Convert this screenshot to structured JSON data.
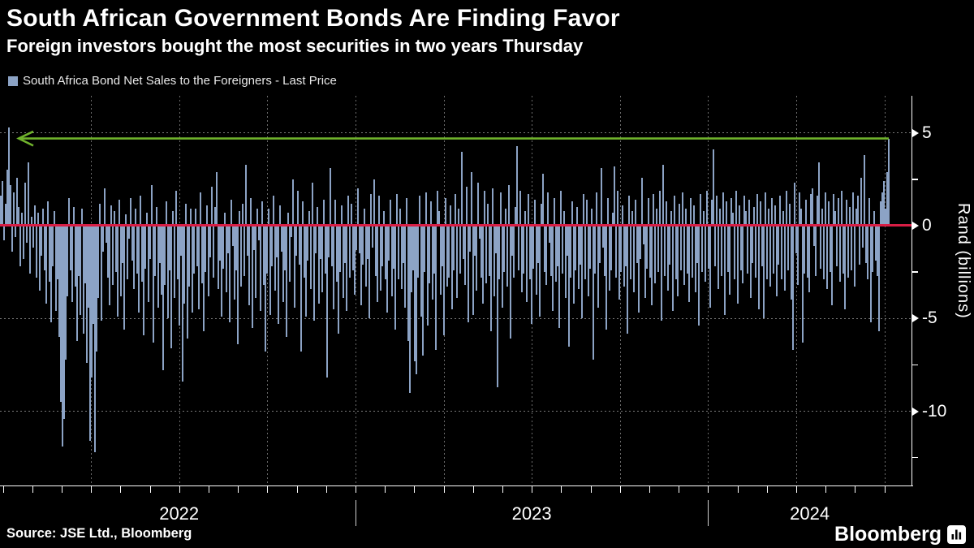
{
  "header": {
    "title": "South African Government Bonds Are Finding Favor",
    "subtitle": "Foreign investors bought the most securities in two years Thursday"
  },
  "legend": {
    "label": "South Africa Bond Net Sales to the Foreigners - Last Price",
    "swatch_color": "#8ca3c5"
  },
  "source": "Source: JSE Ltd., Bloomberg",
  "branding": {
    "logo_text": "Bloomberg"
  },
  "colors": {
    "background": "#000000",
    "bar": "#8ca3c5",
    "zero_line": "#d81e45",
    "annotation_arrow": "#6fb22c",
    "axis": "#ffffff",
    "grid": "rgba(255,255,255,0.45)"
  },
  "chart_data": {
    "type": "bar",
    "title": "South African Government Bonds Are Finding Favor",
    "series_name": "South Africa Bond Net Sales to the Foreigners - Last Price",
    "ylabel": "Rand (billions)",
    "ylim": [
      -14,
      7
    ],
    "y_major_ticks": [
      5,
      0,
      -5,
      -10
    ],
    "y_minor_ticks": [
      2.5,
      -2.5,
      -7.5,
      -12.5
    ],
    "y_gridlines": [
      5,
      -5,
      -10
    ],
    "x_year_labels": [
      "2022",
      "2023",
      "2024"
    ],
    "x_range_note": "daily bars, Jan 2022 - Nov 2024",
    "zero_line_value": 0,
    "annotation": {
      "type": "arrow-left",
      "value": 4.7,
      "meaning": "Thursday's net buying equals the most in two years"
    },
    "values": [
      1.6,
      2.4,
      -0.8,
      1.2,
      3.0,
      5.3,
      2.2,
      -1.4,
      1.8,
      -0.6,
      2.6,
      1.0,
      -2.2,
      0.7,
      -1.8,
      2.3,
      -0.9,
      3.4,
      -2.6,
      0.5,
      -1.2,
      1.1,
      -2.8,
      0.7,
      -3.5,
      -1.6,
      0.9,
      -2.4,
      -4.2,
      1.3,
      -3.0,
      -5.2,
      -2.2,
      0.8,
      -4.6,
      -2.9,
      -6.0,
      -9.5,
      -11.9,
      -10.4,
      -7.2,
      -3.8,
      1.5,
      -2.4,
      -4.1,
      1.0,
      -3.3,
      -6.2,
      -2.7,
      -4.8,
      0.9,
      -5.8,
      -3.1,
      -7.4,
      -4.4,
      -11.6,
      -8.2,
      -5.3,
      -12.2,
      -6.8,
      -3.9,
      1.2,
      -5.1,
      -1.4,
      2.0,
      -0.9,
      -2.8,
      -4.3,
      1.1,
      -3.2,
      0.8,
      -2.5,
      -4.9,
      1.4,
      -3.8,
      -2.0,
      -5.6,
      0.6,
      -2.9,
      -0.7,
      1.5,
      -1.9,
      -3.4,
      0.9,
      -2.6,
      -4.7,
      1.6,
      -3.0,
      -5.9,
      -2.3,
      0.7,
      -4.1,
      -1.8,
      2.2,
      -6.3,
      -2.7,
      1.0,
      -4.4,
      -2.0,
      -3.7,
      -7.8,
      -3.2,
      1.3,
      -5.0,
      -2.4,
      -6.6,
      0.8,
      -3.9,
      1.9,
      -2.9,
      -5.4,
      -1.6,
      -8.4,
      -4.2,
      1.2,
      -6.1,
      -3.3,
      0.9,
      -4.7,
      -2.6,
      0.9,
      -2.2,
      -4.5,
      1.8,
      -3.1,
      -5.7,
      -2.5,
      1.1,
      -3.8,
      -1.7,
      2.1,
      -2.8,
      1.0,
      2.9,
      -3.4,
      -1.9,
      -4.9,
      -2.3,
      0.7,
      -3.6,
      -1.5,
      -5.2,
      1.4,
      -1.1,
      -4.0,
      -2.4,
      -6.4,
      0.8,
      -3.3,
      1.2,
      -2.7,
      3.3,
      -1.6,
      -4.3,
      1.5,
      -5.5,
      -1.3,
      -3.9,
      0.9,
      -0.8,
      -4.6,
      1.3,
      -3.2,
      -6.8,
      -2.6,
      0.9,
      -4.8,
      -2.2,
      1.6,
      -3.5,
      -1.7,
      -5.3,
      1.1,
      -1.4,
      -4.1,
      -2.4,
      -6.0,
      0.7,
      -3.0,
      -0.6,
      2.5,
      -4.4,
      -1.6,
      1.9,
      -2.1,
      -6.8,
      1.3,
      -2.8,
      -4.9,
      -1.9,
      0.8,
      -3.4,
      2.3,
      -5.1,
      -1.5,
      1.0,
      -4.2,
      -1.8,
      -3.6,
      1.4,
      -2.6,
      -8.2,
      -1.7,
      3.1,
      -2.2,
      -4.5,
      1.4,
      -3.0,
      -5.8,
      -2.5,
      1.1,
      -3.9,
      -2.0,
      -4.6,
      1.6,
      -2.8,
      1.2,
      -2.4,
      -3.7,
      -1.3,
      2.0,
      -1.5,
      -4.3,
      -2.1,
      0.9,
      -3.3,
      -1.8,
      -5.0,
      1.7,
      -1.2,
      2.5,
      -2.7,
      -4.1,
      1.6,
      -3.5,
      -2.2,
      0.8,
      -2.9,
      -4.7,
      -1.9,
      1.4,
      -3.8,
      -2.3,
      -5.6,
      1.7,
      -2.9,
      0.9,
      -3.4,
      -2.0,
      -4.4,
      1.5,
      -6.2,
      -9.0,
      -3.6,
      -2.4,
      -7.3,
      -8.0,
      -2.8,
      1.6,
      -4.9,
      -7.0,
      -2.5,
      1.8,
      -5.4,
      -3.1,
      1.3,
      -4.0,
      -2.6,
      -6.7,
      1.9,
      0.8,
      -3.7,
      -2.2,
      -5.9,
      1.5,
      -3.3,
      -2.8,
      1.1,
      -4.5,
      -2.4,
      1.7,
      -3.9,
      0.9,
      -2.6,
      4.0,
      -1.8,
      -3.2,
      2.1,
      -5.2,
      -1.4,
      2.9,
      -4.8,
      -1.6,
      -3.5,
      2.3,
      -0.7,
      -2.8,
      -4.2,
      1.9,
      -3.1,
      1.2,
      -2.7,
      -5.7,
      2.0,
      -3.8,
      -1.5,
      -8.7,
      -2.9,
      1.8,
      -4.4,
      -2.5,
      0.9,
      -3.3,
      2.2,
      -6.1,
      -1.6,
      -2.8,
      1.0,
      4.3,
      -2.4,
      1.9,
      -3.6,
      -2.6,
      0.8,
      -4.1,
      1.7,
      -2.9,
      -5.3,
      -2.3,
      1.4,
      -3.7,
      -2.0,
      -4.9,
      1.2,
      2.8,
      -2.5,
      -3.2,
      1.8,
      -0.9,
      -2.7,
      -4.6,
      1.5,
      -3.0,
      -2.2,
      -5.5,
      1.9,
      -2.6,
      0.8,
      -3.9,
      -1.6,
      -6.5,
      -2.8,
      1.3,
      -4.2,
      -2.4,
      1.0,
      -3.4,
      -2.1,
      -5.0,
      1.7,
      -2.9,
      1.4,
      -3.8,
      -2.3,
      0.9,
      -7.2,
      -2.6,
      1.8,
      -4.4,
      -2.0,
      3.1,
      -1.2,
      -2.7,
      -5.6,
      1.5,
      -3.5,
      -2.4,
      0.7,
      3.2,
      -2.8,
      1.9,
      -4.0,
      -2.5,
      1.1,
      -3.3,
      -2.2,
      -5.8,
      1.6,
      -2.9,
      0.8,
      -3.6,
      1.4,
      -2.0,
      -4.7,
      -1.8,
      2.6,
      -1.0,
      -3.9,
      -2.3,
      1.5,
      -2.8,
      -4.3,
      1.7,
      -3.1,
      0.9,
      -2.5,
      1.9,
      -5.1,
      3.3,
      -2.7,
      1.3,
      -3.5,
      -2.1,
      0.8,
      -4.6,
      1.6,
      -2.9,
      -3.8,
      1.2,
      -2.4,
      1.8,
      -3.2,
      0.9,
      -2.6,
      -4.1,
      1.5,
      -2.8,
      1.1,
      -3.6,
      -2.0,
      -5.4,
      1.7,
      -2.5,
      0.8,
      -3.0,
      1.9,
      -2.3,
      -4.4,
      1.4,
      4.1,
      -2.2,
      1.6,
      -3.4,
      0.9,
      -2.7,
      1.8,
      -4.8,
      1.3,
      -2.5,
      -3.7,
      1.5,
      0.7,
      -2.9,
      1.9,
      -4.2,
      1.1,
      -2.4,
      -3.1,
      1.6,
      0.8,
      -2.6,
      1.4,
      -3.9,
      -2.0,
      1.0,
      -2.8,
      1.7,
      -4.5,
      1.3,
      -2.2,
      -5.0,
      1.8,
      -2.9,
      0.9,
      -3.3,
      1.5,
      -2.6,
      1.1,
      -3.8,
      -2.1,
      1.6,
      -2.9,
      0.8,
      -3.5,
      1.9,
      -2.4,
      1.2,
      -4.0,
      -6.7,
      2.3,
      -1.5,
      -3.2,
      1.8,
      0.9,
      -6.3,
      -2.6,
      1.4,
      -2.8,
      -3.6,
      1.7,
      2.0,
      -1.1,
      -2.7,
      1.6,
      3.4,
      -2.3,
      0.9,
      -2.9,
      1.8,
      -3.4,
      1.3,
      -2.5,
      -4.3,
      1.7,
      0.8,
      -2.2,
      1.5,
      -3.0,
      1.9,
      -2.6,
      -4.5,
      1.4,
      -2.8,
      1.0,
      -2.4,
      1.8,
      -3.3,
      0.9,
      1.6,
      -2.1,
      2.6,
      -1.2,
      3.8,
      -2.0,
      -2.9,
      1.5,
      -5.2,
      -2.5,
      0.8,
      -1.9,
      -2.7,
      -5.7,
      1.3,
      1.8,
      2.4,
      0.9,
      2.9,
      4.7
    ]
  }
}
